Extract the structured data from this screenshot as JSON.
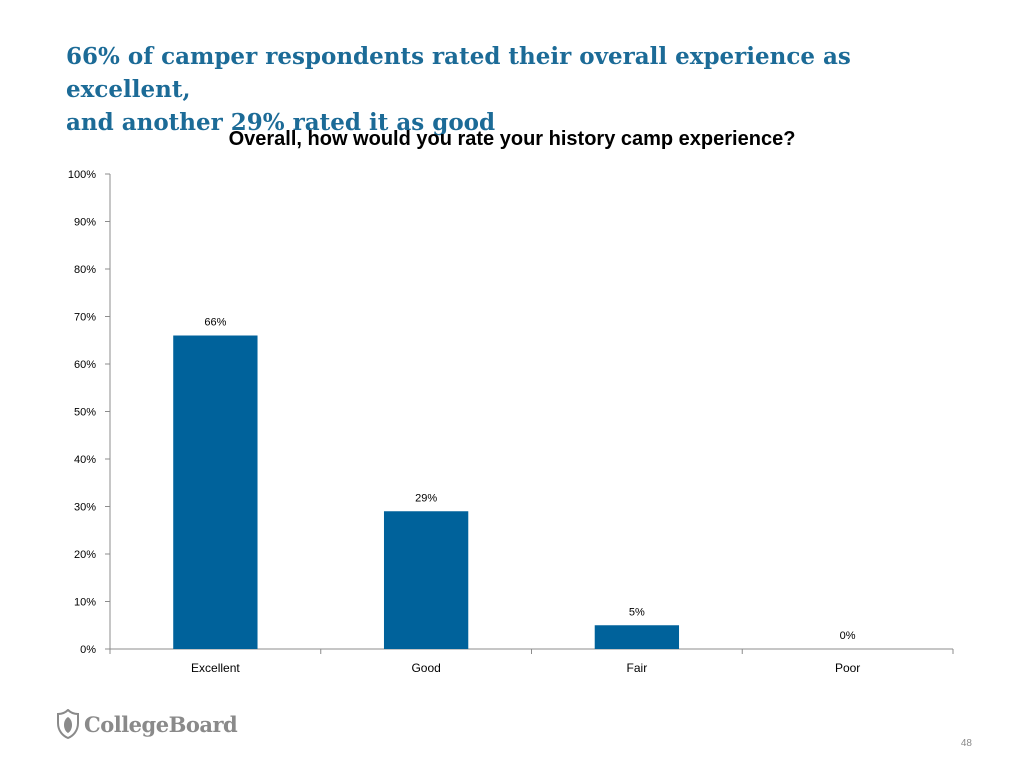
{
  "slide": {
    "headline_line1": "66% of camper respondents rated their overall experience as excellent,",
    "headline_line2": "and another 29% rated it as good",
    "page_number": "48",
    "logo_text": "CollegeBoard",
    "headline_color": "#1c6b97",
    "bar_color": "#00629b",
    "logo_color": "#8a8a8a"
  },
  "chart_data": {
    "type": "bar",
    "title": "Overall, how would you rate your history camp experience?",
    "categories": [
      "Excellent",
      "Good",
      "Fair",
      "Poor"
    ],
    "values": [
      66,
      29,
      5,
      0
    ],
    "data_labels": [
      "66%",
      "29%",
      "5%",
      "0%"
    ],
    "xlabel": "",
    "ylabel": "",
    "ylim": [
      0,
      100
    ],
    "yticks": [
      0,
      10,
      20,
      30,
      40,
      50,
      60,
      70,
      80,
      90,
      100
    ],
    "ytick_labels": [
      "0%",
      "10%",
      "20%",
      "30%",
      "40%",
      "50%",
      "60%",
      "70%",
      "80%",
      "90%",
      "100%"
    ],
    "grid": false,
    "legend": "none"
  }
}
